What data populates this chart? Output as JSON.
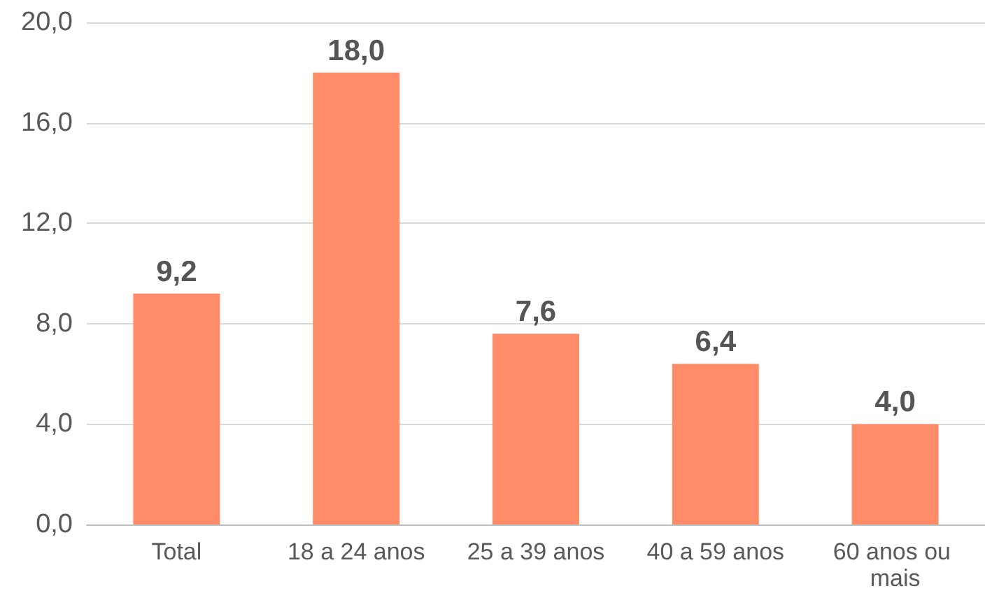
{
  "chart_data": {
    "type": "bar",
    "categories": [
      "Total",
      "18 a 24 anos",
      "25 a 39 anos",
      "40 a 59 anos",
      "60 anos ou mais"
    ],
    "values": [
      9.2,
      18.0,
      7.6,
      6.4,
      4.0
    ],
    "value_labels": [
      "9,2",
      "18,0",
      "7,6",
      "6,4",
      "4,0"
    ],
    "color": "#ff8c69",
    "ylim": [
      0,
      20
    ],
    "yticks": [
      {
        "value": 0,
        "label": "0,0"
      },
      {
        "value": 4,
        "label": "4,0"
      },
      {
        "value": 8,
        "label": "8,0"
      },
      {
        "value": 12,
        "label": "12,0"
      },
      {
        "value": 16,
        "label": "16,0"
      },
      {
        "value": 20,
        "label": "20,0"
      }
    ],
    "grid": "y"
  }
}
